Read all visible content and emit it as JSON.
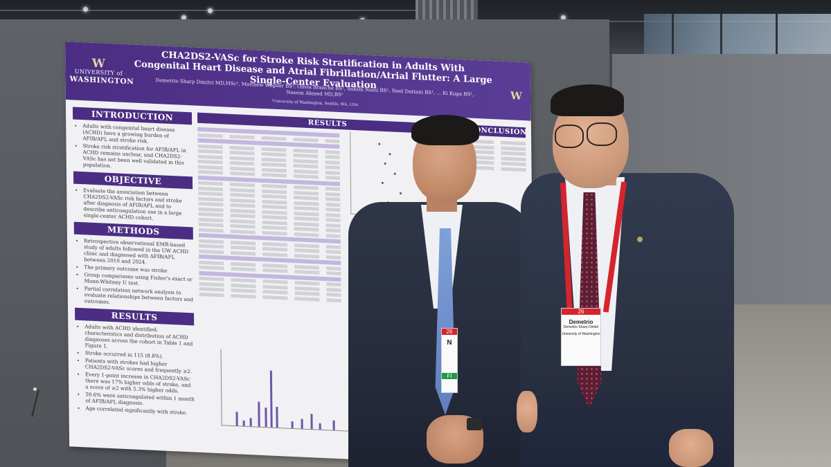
{
  "poster": {
    "institution_top": "UNIVERSITY of",
    "institution_bottom": "WASHINGTON",
    "logo_letter": "W",
    "title": "CHA2DS2-VASc for Stroke Risk Stratification in Adults With Congenital Heart Disease and Atrial Fibrillation/Atrial Flutter: A Large Single-Center Evaluation",
    "authors": "Demetrio Sharp Dimitri MD,MSc¹, Matthew Wagner BS¹, Olivia Branche BS¹, Sakshi Naini BS¹, Neel Dattani BS¹, ... Ki Kuga BS¹, Naeem Ahmed MD,BS¹",
    "affiliation": "¹University of Washington, Seattle, WA, USA",
    "sections": {
      "introduction": {
        "heading": "INTRODUCTION",
        "bullets": [
          "Adults with congenital heart disease (ACHD) have a growing burden of AFIB/AFL and stroke risk.",
          "Stroke risk stratification for AFIB/AFL in ACHD remains unclear, and CHA2DS2-VASc has not been well validated in this population."
        ]
      },
      "objective": {
        "heading": "OBJECTIVE",
        "bullets": [
          "Evaluate the association between CHA2DS2-VASc risk factors and stroke after diagnosis of AFIB/AFL and to describe anticoagulation use in a large single-center ACHD cohort."
        ]
      },
      "methods": {
        "heading": "METHODS",
        "bullets": [
          "Retrospective observational EMR-based study of adults followed in the UW ACHD clinic and diagnosed with AFIB/AFL between 2010 and 2024.",
          "The primary outcome was stroke",
          "Group comparisons using Fisher's exact or Mann-Whitney U test.",
          "Partial correlation network analysis to evaluate relationships between factors and outcomes."
        ]
      },
      "results": {
        "heading": "RESULTS",
        "bullets": [
          "Adults with ACHD identified; characteristics and distribution of ACHD diagnoses across the cohort in Table 1 and Figure 1.",
          "Stroke occurred in 115 (8.8%).",
          "Patients with strokes had higher CHA2DS2-VASc scores and frequently ≥2.",
          "Every 1-point increase in CHA2DS2-VASc there was 17% higher odds of stroke, and a score of ≥2 with 5.3% higher odds.",
          "59.6% were anticoagulated within 1 month of AFIB/AFL diagnosis.",
          "Age correlated significantly with stroke."
        ]
      },
      "results_main_heading": "RESULTS",
      "conclusion_heading": "CONCLUSION"
    }
  },
  "badges": {
    "left_person": {
      "top": "26",
      "line1": "N",
      "band": "FI"
    },
    "right_person": {
      "top": "26",
      "name": "Demetrio",
      "line2": "Demetrio Sharp Dimitri",
      "line3": "University of Washington"
    }
  },
  "colors": {
    "uw_purple": "#4b2e83",
    "uw_gold": "#e8d3a2",
    "lanyard_red": "#d6242d",
    "suit_navy": "#2a3142"
  }
}
